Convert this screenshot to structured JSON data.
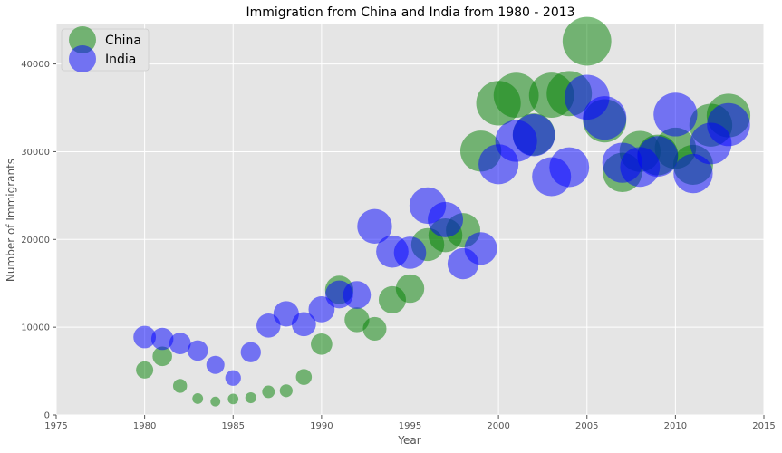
{
  "chart_data": {
    "type": "scatter",
    "title": "Immigration from China and India from 1980 - 2013",
    "xlabel": "Year",
    "ylabel": "Number of Immigrants",
    "xlim": [
      1975,
      2015
    ],
    "ylim": [
      0,
      44500
    ],
    "xticks": [
      1975,
      1980,
      1985,
      1990,
      1995,
      2000,
      2005,
      2010,
      2015
    ],
    "yticks": [
      0,
      10000,
      20000,
      30000,
      40000
    ],
    "grid": true,
    "legend_position": "top-left",
    "bubble_size_encodes": "y value",
    "series": [
      {
        "name": "China",
        "color": "#008000",
        "x": [
          1980,
          1981,
          1982,
          1983,
          1984,
          1985,
          1986,
          1987,
          1988,
          1989,
          1990,
          1991,
          1992,
          1993,
          1994,
          1995,
          1996,
          1997,
          1998,
          1999,
          2000,
          2001,
          2002,
          2003,
          2004,
          2005,
          2006,
          2007,
          2008,
          2009,
          2010,
          2011,
          2012,
          2013
        ],
        "y": [
          5123,
          6682,
          3308,
          1863,
          1527,
          1816,
          1960,
          2643,
          2758,
          4323,
          8076,
          14255,
          10846,
          9817,
          13128,
          14398,
          19415,
          20475,
          21049,
          30069,
          35529,
          36434,
          31961,
          36439,
          36619,
          42584,
          33518,
          27642,
          30037,
          29622,
          30391,
          28502,
          33024,
          34129
        ]
      },
      {
        "name": "India",
        "color": "#0000ff",
        "x": [
          1980,
          1981,
          1982,
          1983,
          1984,
          1985,
          1986,
          1987,
          1988,
          1989,
          1990,
          1991,
          1992,
          1993,
          1994,
          1995,
          1996,
          1997,
          1998,
          1999,
          2000,
          2001,
          2002,
          2003,
          2004,
          2005,
          2006,
          2007,
          2008,
          2009,
          2010,
          2011,
          2012,
          2013
        ],
        "y": [
          8880,
          8670,
          8147,
          7338,
          5704,
          4211,
          7150,
          10189,
          11522,
          10343,
          12041,
          13734,
          13673,
          21496,
          18620,
          18489,
          23859,
          22268,
          17241,
          18974,
          28572,
          31223,
          31889,
          27155,
          28235,
          36210,
          33848,
          28742,
          28261,
          29456,
          34235,
          27509,
          30933,
          33087
        ]
      }
    ]
  }
}
